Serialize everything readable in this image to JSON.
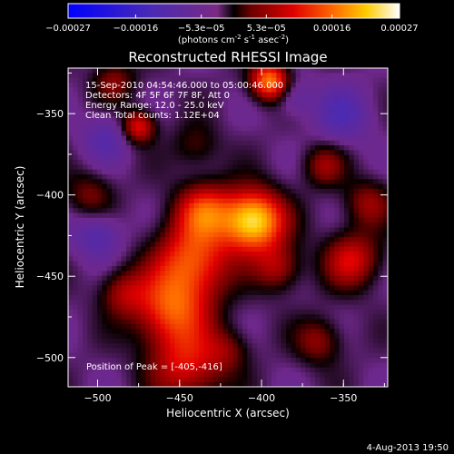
{
  "chart_data": {
    "type": "heatmap",
    "title": "Reconstructed RHESSI Image",
    "xlabel": "Heliocentric X (arcsec)",
    "ylabel": "Heliocentric Y (arcsec)",
    "xlim": [
      -518,
      -323
    ],
    "ylim": [
      -518,
      -322
    ],
    "x_ticks": [
      -500,
      -450,
      -400,
      -350
    ],
    "y_ticks": [
      -500,
      -450,
      -400,
      -350
    ],
    "colorbar": {
      "min": -0.00027,
      "max": 0.00027,
      "tick_values": [
        -0.00027,
        -0.00016,
        -5.3e-05,
        5.3e-05,
        0.00016,
        0.00027
      ],
      "tick_labels": [
        "-0.00027",
        "-0.00016",
        "-5.3e-05",
        "5.3e-05",
        "0.00016",
        "0.00027"
      ],
      "units_text": "(photons cm",
      "units_exp1": "-2",
      "units_mid": " s",
      "units_exp2": "-1",
      "units_end": " asec",
      "units_exp3": "-2",
      "units_close": ")"
    },
    "annotations": [
      "15-Sep-2010 04:54:46.000 to 05:00:46.000",
      "Detectors: 4F 5F 6F 7F 8F, Att 0",
      "Energy Range: 12.0 - 25.0 keV",
      "Clean    Total counts: 1.12E+04"
    ],
    "peak_label": "Position of Peak = [-405,-416]",
    "peak": [
      -405,
      -416
    ],
    "sources": [
      {
        "x": -405,
        "y": -416,
        "amp": 1.0,
        "sigma": 13
      },
      {
        "x": -435,
        "y": -410,
        "amp": 0.55,
        "sigma": 12
      },
      {
        "x": -442,
        "y": -440,
        "amp": 0.6,
        "sigma": 16
      },
      {
        "x": -395,
        "y": -330,
        "amp": 0.75,
        "sigma": 8
      },
      {
        "x": -475,
        "y": -358,
        "amp": 0.5,
        "sigma": 7
      },
      {
        "x": -455,
        "y": -470,
        "amp": 0.6,
        "sigma": 16
      },
      {
        "x": -445,
        "y": -505,
        "amp": 0.45,
        "sigma": 16
      },
      {
        "x": -345,
        "y": -440,
        "amp": 0.45,
        "sigma": 12
      },
      {
        "x": -335,
        "y": -405,
        "amp": 0.3,
        "sigma": 10
      },
      {
        "x": -365,
        "y": -490,
        "amp": 0.3,
        "sigma": 10
      },
      {
        "x": -390,
        "y": -445,
        "amp": 0.35,
        "sigma": 10
      },
      {
        "x": -485,
        "y": -460,
        "amp": 0.3,
        "sigma": 10
      },
      {
        "x": -505,
        "y": -400,
        "amp": 0.25,
        "sigma": 10
      },
      {
        "x": -490,
        "y": -330,
        "amp": 0.28,
        "sigma": 9
      },
      {
        "x": -440,
        "y": -370,
        "amp": 0.2,
        "sigma": 10
      },
      {
        "x": -362,
        "y": -382,
        "amp": 0.3,
        "sigma": 9
      },
      {
        "x": -420,
        "y": -495,
        "amp": 0.2,
        "sigma": 9
      },
      {
        "x": -500,
        "y": -425,
        "amp": -0.3,
        "sigma": 10
      },
      {
        "x": -350,
        "y": -350,
        "amp": -0.3,
        "sigma": 12
      },
      {
        "x": -495,
        "y": -365,
        "amp": -0.25,
        "sigma": 10
      },
      {
        "x": -380,
        "y": -340,
        "amp": -0.2,
        "sigma": 8
      }
    ],
    "background_level": -0.12
  },
  "footer": {
    "date": "4-Aug-2013 19:50"
  }
}
